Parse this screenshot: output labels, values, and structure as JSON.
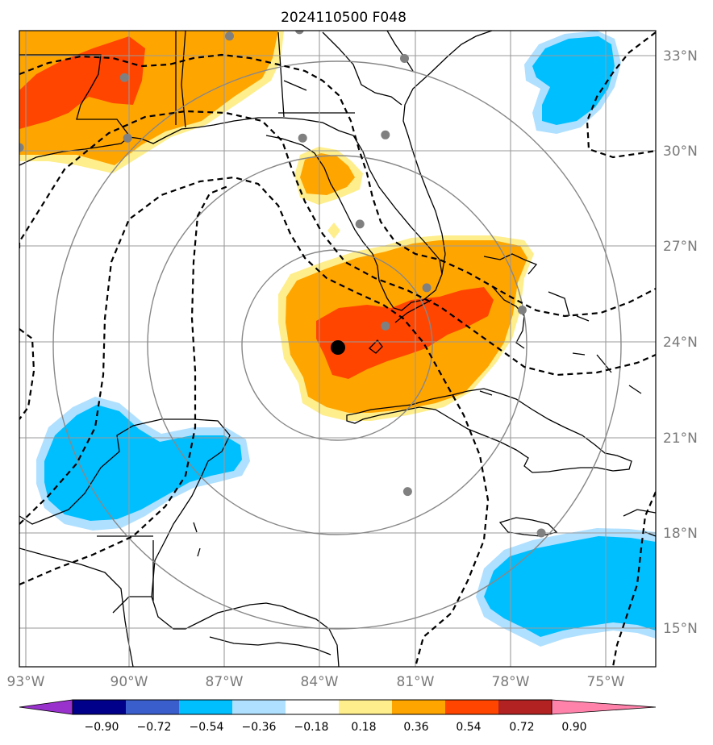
{
  "title": "2024110500 F048",
  "map": {
    "lon_range": [
      -93.3,
      -73.8
    ],
    "lat_range": [
      13.9,
      34.8
    ],
    "lon_ticks": [
      {
        "value": -93,
        "label": "93°W"
      },
      {
        "value": -90,
        "label": "90°W"
      },
      {
        "value": -87,
        "label": "87°W"
      },
      {
        "value": -84,
        "label": "84°W"
      },
      {
        "value": -81,
        "label": "81°W"
      },
      {
        "value": -78,
        "label": "78°W"
      },
      {
        "value": -75,
        "label": "75°W"
      }
    ],
    "lat_ticks": [
      {
        "value": 33,
        "label": "33°N"
      },
      {
        "value": 30,
        "label": "30°N"
      },
      {
        "value": 27,
        "label": "27°N"
      },
      {
        "value": 24,
        "label": "24°N"
      },
      {
        "value": 21,
        "label": "21°N"
      },
      {
        "value": 18,
        "label": "18°N"
      },
      {
        "value": 15,
        "label": "15°N"
      }
    ],
    "center": {
      "lon": -83.4,
      "lat": 23.8
    },
    "range_rings_deg": [
      3,
      6,
      9
    ],
    "stations": [
      {
        "lon": -89.9,
        "lat": 32.3
      },
      {
        "lon": -86.6,
        "lat": 33.6
      },
      {
        "lon": -84.4,
        "lat": 33.8
      },
      {
        "lon": -81.1,
        "lat": 32.9
      },
      {
        "lon": -93.2,
        "lat": 30.1
      },
      {
        "lon": -89.8,
        "lat": 30.4
      },
      {
        "lon": -84.3,
        "lat": 30.4
      },
      {
        "lon": -81.7,
        "lat": 30.5
      },
      {
        "lon": -82.5,
        "lat": 27.7
      },
      {
        "lon": -80.4,
        "lat": 25.7
      },
      {
        "lon": -81.7,
        "lat": 24.5
      },
      {
        "lon": -77.4,
        "lat": 25.0
      },
      {
        "lon": -81.0,
        "lat": 19.3
      },
      {
        "lon": -76.8,
        "lat": 18.0
      }
    ]
  },
  "colorbar": {
    "labels": [
      "−0.90",
      "−0.72",
      "−0.54",
      "−0.36",
      "−0.18",
      "0.18",
      "0.36",
      "0.54",
      "0.72",
      "0.90"
    ],
    "colors": [
      "#9932cc",
      "#00008b",
      "#3a5fcd",
      "#00bfff",
      "#b0e0ff",
      "#ffffff",
      "#ffee8c",
      "#ffa500",
      "#ff4500",
      "#b22222",
      "#ff82ab"
    ]
  }
}
